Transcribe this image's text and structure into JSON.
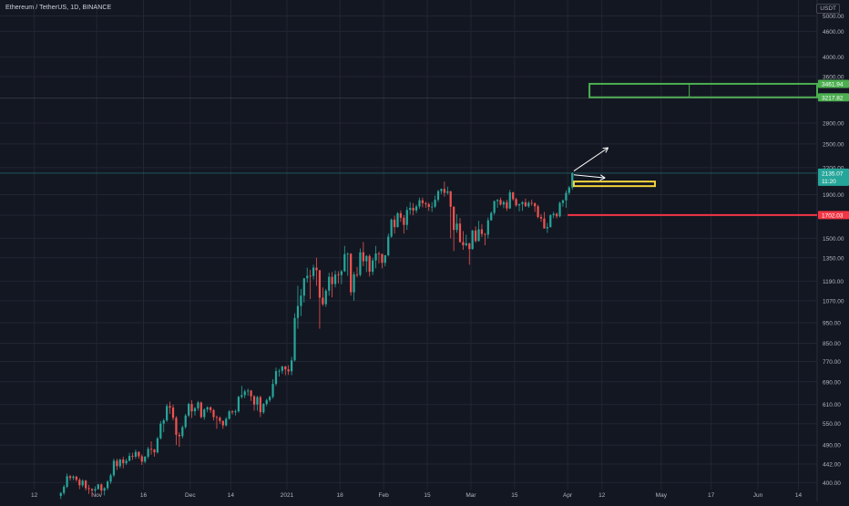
{
  "chart_data": {
    "type": "candlestick",
    "title": "Ethereum / TetherUS, 1D, BINANCE",
    "price_unit": "USDT",
    "y_scale": "log",
    "ylim": [
      385,
      5450
    ],
    "y_ticks": [
      "5000.00",
      "4600.00",
      "4000.00",
      "3600.00",
      "2800.00",
      "2500.00",
      "2200.00",
      "1900.00",
      "1700.00",
      "1500.00",
      "1350.00",
      "1190.00",
      "1070.00",
      "950.00",
      "850.00",
      "770.00",
      "690.00",
      "610.00",
      "550.00",
      "490.00",
      "442.00",
      "400.00"
    ],
    "x_ticks": [
      "12",
      "Nov",
      "16",
      "Dec",
      "14",
      "2021",
      "18",
      "Feb",
      "15",
      "Mar",
      "15",
      "Apr",
      "12",
      "May",
      "17",
      "Jun",
      "14"
    ],
    "x_range": [
      "2020-10-01",
      "2021-06-20"
    ],
    "candles": [
      [
        "2020-10-20",
        372,
        380,
        366,
        378
      ],
      [
        "2020-10-21",
        378,
        395,
        374,
        391
      ],
      [
        "2020-10-22",
        391,
        420,
        388,
        414
      ],
      [
        "2020-10-23",
        414,
        417,
        404,
        410
      ],
      [
        "2020-10-24",
        410,
        416,
        405,
        413
      ],
      [
        "2020-10-25",
        413,
        415,
        402,
        406
      ],
      [
        "2020-10-26",
        406,
        410,
        386,
        394
      ],
      [
        "2020-10-27",
        394,
        407,
        390,
        404
      ],
      [
        "2020-10-28",
        404,
        406,
        383,
        388
      ],
      [
        "2020-10-29",
        388,
        395,
        376,
        386
      ],
      [
        "2020-10-30",
        386,
        388,
        370,
        383
      ],
      [
        "2020-10-31",
        383,
        392,
        379,
        386
      ],
      [
        "2020-11-01",
        386,
        397,
        385,
        396
      ],
      [
        "2020-11-02",
        396,
        398,
        376,
        383
      ],
      [
        "2020-11-03",
        383,
        390,
        373,
        388
      ],
      [
        "2020-11-04",
        388,
        405,
        384,
        402
      ],
      [
        "2020-11-05",
        402,
        420,
        397,
        416
      ],
      [
        "2020-11-06",
        416,
        455,
        412,
        450
      ],
      [
        "2020-11-07",
        450,
        455,
        428,
        437
      ],
      [
        "2020-11-08",
        437,
        455,
        432,
        453
      ],
      [
        "2020-11-09",
        453,
        460,
        432,
        444
      ],
      [
        "2020-11-10",
        444,
        455,
        440,
        450
      ],
      [
        "2020-11-11",
        450,
        470,
        448,
        462
      ],
      [
        "2020-11-12",
        462,
        470,
        452,
        460
      ],
      [
        "2020-11-13",
        460,
        478,
        455,
        472
      ],
      [
        "2020-11-14",
        472,
        474,
        455,
        461
      ],
      [
        "2020-11-15",
        461,
        466,
        440,
        448
      ],
      [
        "2020-11-16",
        448,
        462,
        444,
        460
      ],
      [
        "2020-11-17",
        460,
        485,
        455,
        480
      ],
      [
        "2020-11-18",
        480,
        500,
        465,
        478
      ],
      [
        "2020-11-19",
        478,
        480,
        460,
        471
      ],
      [
        "2020-11-20",
        471,
        512,
        468,
        508
      ],
      [
        "2020-11-21",
        508,
        558,
        505,
        550
      ],
      [
        "2020-11-22",
        550,
        565,
        525,
        560
      ],
      [
        "2020-11-23",
        560,
        612,
        555,
        605
      ],
      [
        "2020-11-24",
        605,
        620,
        580,
        600
      ],
      [
        "2020-11-25",
        600,
        610,
        560,
        568
      ],
      [
        "2020-11-26",
        568,
        573,
        490,
        518
      ],
      [
        "2020-11-27",
        518,
        525,
        485,
        514
      ],
      [
        "2020-11-28",
        514,
        545,
        508,
        540
      ],
      [
        "2020-11-29",
        540,
        580,
        535,
        575
      ],
      [
        "2020-11-30",
        575,
        616,
        570,
        612
      ],
      [
        "2020-12-01",
        612,
        625,
        567,
        588
      ],
      [
        "2020-12-02",
        588,
        602,
        575,
        598
      ],
      [
        "2020-12-03",
        598,
        622,
        590,
        617
      ],
      [
        "2020-12-04",
        617,
        620,
        566,
        570
      ],
      [
        "2020-12-05",
        570,
        598,
        562,
        594
      ],
      [
        "2020-12-06",
        594,
        604,
        585,
        601
      ],
      [
        "2020-12-07",
        601,
        604,
        583,
        592
      ],
      [
        "2020-12-08",
        592,
        596,
        560,
        570
      ],
      [
        "2020-12-09",
        570,
        575,
        535,
        568
      ],
      [
        "2020-12-10",
        568,
        572,
        550,
        558
      ],
      [
        "2020-12-11",
        558,
        560,
        535,
        545
      ],
      [
        "2020-12-12",
        545,
        570,
        542,
        565
      ],
      [
        "2020-12-13",
        565,
        592,
        562,
        588
      ],
      [
        "2020-12-14",
        588,
        592,
        578,
        585
      ],
      [
        "2020-12-15",
        585,
        594,
        575,
        588
      ],
      [
        "2020-12-16",
        588,
        640,
        584,
        636
      ],
      [
        "2020-12-17",
        636,
        675,
        630,
        642
      ],
      [
        "2020-12-18",
        642,
        662,
        632,
        655
      ],
      [
        "2020-12-19",
        655,
        665,
        640,
        658
      ],
      [
        "2020-12-20",
        658,
        660,
        622,
        638
      ],
      [
        "2020-12-21",
        638,
        642,
        590,
        610
      ],
      [
        "2020-12-22",
        610,
        640,
        590,
        635
      ],
      [
        "2020-12-23",
        635,
        640,
        570,
        585
      ],
      [
        "2020-12-24",
        585,
        615,
        580,
        612
      ],
      [
        "2020-12-25",
        612,
        630,
        605,
        625
      ],
      [
        "2020-12-26",
        625,
        640,
        618,
        636
      ],
      [
        "2020-12-27",
        636,
        700,
        630,
        682
      ],
      [
        "2020-12-28",
        682,
        745,
        675,
        731
      ],
      [
        "2020-12-29",
        731,
        740,
        710,
        732
      ],
      [
        "2020-12-30",
        732,
        752,
        720,
        750
      ],
      [
        "2020-12-31",
        750,
        752,
        715,
        738
      ],
      [
        "2021-01-01",
        738,
        755,
        716,
        730
      ],
      [
        "2021-01-02",
        730,
        790,
        715,
        775
      ],
      [
        "2021-01-03",
        775,
        1000,
        770,
        975
      ],
      [
        "2021-01-04",
        975,
        1160,
        920,
        1040
      ],
      [
        "2021-01-05",
        1040,
        1140,
        985,
        1100
      ],
      [
        "2021-01-06",
        1100,
        1210,
        1060,
        1208
      ],
      [
        "2021-01-07",
        1208,
        1280,
        1180,
        1225
      ],
      [
        "2021-01-08",
        1225,
        1265,
        1080,
        1223
      ],
      [
        "2021-01-09",
        1223,
        1300,
        1200,
        1280
      ],
      [
        "2021-01-10",
        1280,
        1350,
        1160,
        1262
      ],
      [
        "2021-01-11",
        1262,
        1265,
        920,
        1088
      ],
      [
        "2021-01-12",
        1088,
        1150,
        1040,
        1050
      ],
      [
        "2021-01-13",
        1050,
        1140,
        1035,
        1130
      ],
      [
        "2021-01-14",
        1130,
        1245,
        1100,
        1218
      ],
      [
        "2021-01-15",
        1218,
        1250,
        1090,
        1171
      ],
      [
        "2021-01-16",
        1171,
        1260,
        1150,
        1233
      ],
      [
        "2021-01-17",
        1233,
        1255,
        1175,
        1230
      ],
      [
        "2021-01-18",
        1230,
        1265,
        1170,
        1255
      ],
      [
        "2021-01-19",
        1255,
        1440,
        1250,
        1377
      ],
      [
        "2021-01-20",
        1377,
        1390,
        1225,
        1380
      ],
      [
        "2021-01-21",
        1380,
        1385,
        1100,
        1120
      ],
      [
        "2021-01-22",
        1120,
        1250,
        1070,
        1234
      ],
      [
        "2021-01-23",
        1234,
        1285,
        1215,
        1231
      ],
      [
        "2021-01-24",
        1231,
        1420,
        1220,
        1391
      ],
      [
        "2021-01-25",
        1391,
        1470,
        1290,
        1325
      ],
      [
        "2021-01-26",
        1325,
        1370,
        1250,
        1363
      ],
      [
        "2021-01-27",
        1363,
        1375,
        1220,
        1252
      ],
      [
        "2021-01-28",
        1252,
        1350,
        1230,
        1331
      ],
      [
        "2021-01-29",
        1331,
        1440,
        1275,
        1382
      ],
      [
        "2021-01-30",
        1382,
        1395,
        1310,
        1379
      ],
      [
        "2021-01-31",
        1379,
        1380,
        1275,
        1314
      ],
      [
        "2021-02-01",
        1314,
        1370,
        1290,
        1369
      ],
      [
        "2021-02-02",
        1369,
        1540,
        1360,
        1514
      ],
      [
        "2021-02-03",
        1514,
        1670,
        1505,
        1660
      ],
      [
        "2021-02-04",
        1660,
        1695,
        1540,
        1594
      ],
      [
        "2021-02-05",
        1594,
        1730,
        1590,
        1718
      ],
      [
        "2021-02-06",
        1718,
        1745,
        1640,
        1677
      ],
      [
        "2021-02-07",
        1677,
        1700,
        1540,
        1613
      ],
      [
        "2021-02-08",
        1613,
        1780,
        1570,
        1749
      ],
      [
        "2021-02-09",
        1749,
        1825,
        1707,
        1769
      ],
      [
        "2021-02-10",
        1769,
        1815,
        1700,
        1744
      ],
      [
        "2021-02-11",
        1744,
        1800,
        1720,
        1783
      ],
      [
        "2021-02-12",
        1783,
        1870,
        1760,
        1843
      ],
      [
        "2021-02-13",
        1843,
        1870,
        1775,
        1814
      ],
      [
        "2021-02-14",
        1814,
        1830,
        1770,
        1805
      ],
      [
        "2021-02-15",
        1805,
        1820,
        1740,
        1779
      ],
      [
        "2021-02-16",
        1779,
        1825,
        1730,
        1781
      ],
      [
        "2021-02-17",
        1781,
        1890,
        1767,
        1848
      ],
      [
        "2021-02-18",
        1848,
        1950,
        1826,
        1937
      ],
      [
        "2021-02-19",
        1937,
        1965,
        1906,
        1960
      ],
      [
        "2021-02-20",
        1960,
        2040,
        1880,
        1919
      ],
      [
        "2021-02-21",
        1919,
        1985,
        1900,
        1935
      ],
      [
        "2021-02-22",
        1935,
        1940,
        1500,
        1780
      ],
      [
        "2021-02-23",
        1780,
        1785,
        1400,
        1570
      ],
      [
        "2021-02-24",
        1570,
        1710,
        1545,
        1625
      ],
      [
        "2021-02-25",
        1625,
        1675,
        1465,
        1470
      ],
      [
        "2021-02-26",
        1470,
        1560,
        1410,
        1445
      ],
      [
        "2021-02-27",
        1445,
        1530,
        1435,
        1460
      ],
      [
        "2021-02-28",
        1460,
        1465,
        1300,
        1416
      ],
      [
        "2021-03-01",
        1416,
        1570,
        1410,
        1565
      ],
      [
        "2021-03-02",
        1565,
        1600,
        1465,
        1478
      ],
      [
        "2021-03-03",
        1478,
        1650,
        1475,
        1575
      ],
      [
        "2021-03-04",
        1575,
        1620,
        1510,
        1535
      ],
      [
        "2021-03-05",
        1535,
        1545,
        1445,
        1530
      ],
      [
        "2021-03-06",
        1530,
        1680,
        1500,
        1654
      ],
      [
        "2021-03-07",
        1654,
        1735,
        1650,
        1721
      ],
      [
        "2021-03-08",
        1721,
        1840,
        1703,
        1835
      ],
      [
        "2021-03-09",
        1835,
        1855,
        1770,
        1847
      ],
      [
        "2021-03-10",
        1847,
        1870,
        1790,
        1801
      ],
      [
        "2021-03-11",
        1801,
        1840,
        1765,
        1825
      ],
      [
        "2021-03-12",
        1825,
        1848,
        1740,
        1764
      ],
      [
        "2021-03-13",
        1764,
        1950,
        1758,
        1924
      ],
      [
        "2021-03-14",
        1924,
        1930,
        1840,
        1855
      ],
      [
        "2021-03-15",
        1855,
        1870,
        1780,
        1793
      ],
      [
        "2021-03-16",
        1793,
        1810,
        1735,
        1805
      ],
      [
        "2021-03-17",
        1805,
        1835,
        1740,
        1824
      ],
      [
        "2021-03-18",
        1824,
        1860,
        1780,
        1784
      ],
      [
        "2021-03-19",
        1784,
        1835,
        1770,
        1818
      ],
      [
        "2021-03-20",
        1818,
        1850,
        1790,
        1813
      ],
      [
        "2021-03-21",
        1813,
        1822,
        1730,
        1784
      ],
      [
        "2021-03-22",
        1784,
        1800,
        1670,
        1684
      ],
      [
        "2021-03-23",
        1684,
        1710,
        1640,
        1670
      ],
      [
        "2021-03-24",
        1670,
        1730,
        1580,
        1583
      ],
      [
        "2021-03-25",
        1583,
        1630,
        1545,
        1594
      ],
      [
        "2021-03-26",
        1594,
        1710,
        1590,
        1700
      ],
      [
        "2021-03-27",
        1700,
        1732,
        1673,
        1713
      ],
      [
        "2021-03-28",
        1713,
        1725,
        1670,
        1690
      ],
      [
        "2021-03-29",
        1690,
        1830,
        1680,
        1816
      ],
      [
        "2021-03-30",
        1816,
        1850,
        1780,
        1842
      ],
      [
        "2021-03-31",
        1842,
        1945,
        1770,
        1919
      ],
      [
        "2021-04-01",
        1919,
        1990,
        1898,
        1975
      ],
      [
        "2021-04-02",
        1975,
        2145,
        1950,
        2135
      ]
    ],
    "current_price": {
      "label": "2135.07",
      "timer": "11:20",
      "value": 2135.07
    },
    "zones": [
      {
        "name": "target-zone",
        "low": 3217.82,
        "high": 3461.94,
        "from": "2021-04-08",
        "to": "2021-06-20",
        "color": "#4caf50",
        "labels": [
          "3461.94",
          "3217.82"
        ],
        "divider": "2021-05-10"
      },
      {
        "name": "entry-zone",
        "low": 1990,
        "high": 2040,
        "from": "2021-04-03",
        "to": "2021-04-29",
        "color": "#f6d33c"
      }
    ],
    "levels": [
      {
        "name": "support-level",
        "value": 1702.03,
        "label": "1702.03",
        "from": "2021-04-01",
        "color": "#f23645"
      }
    ],
    "arrows": [
      {
        "name": "arrow-up",
        "from": [
          "2021-04-03",
          2160
        ],
        "to": [
          "2021-04-14",
          2450
        ]
      },
      {
        "name": "arrow-right",
        "from": [
          "2021-04-03",
          2115
        ],
        "to": [
          "2021-04-13",
          2080
        ]
      }
    ],
    "colors": {
      "up": "#26a69a",
      "down": "#ef5350",
      "background": "#131722",
      "grid": "#232632",
      "axis_text": "#b2b5be",
      "price_tag": "#26a69a"
    }
  }
}
